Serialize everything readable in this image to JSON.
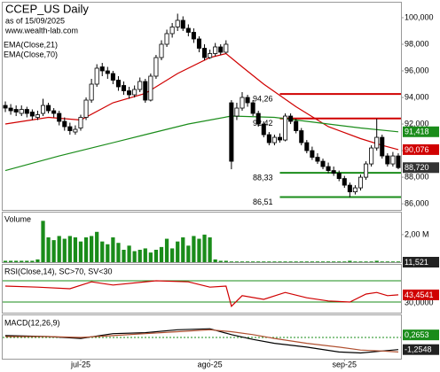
{
  "chart_data": {
    "type": "candlestick",
    "title": "CCEP_US Daily",
    "subtitle": "as of 15/09/2025",
    "source": "www.wealth-lab.com",
    "xticks": [
      {
        "value": 14,
        "label": "jul-25"
      },
      {
        "value": 38,
        "label": "ago-25"
      },
      {
        "value": 63,
        "label": "sep-25"
      }
    ],
    "ylim": [
      85.54,
      101.13
    ],
    "yticks": [
      {
        "value": 100,
        "label": "100,000"
      },
      {
        "value": 98,
        "label": "98,000"
      },
      {
        "value": 96,
        "label": "96,000"
      },
      {
        "value": 94,
        "label": "94,000"
      },
      {
        "value": 92,
        "label": "92,000"
      },
      {
        "value": 90,
        "label": "90,000"
      },
      {
        "value": 88,
        "label": "88,000"
      },
      {
        "value": 86,
        "label": "86,000"
      }
    ],
    "open": [
      93.4,
      93.2,
      93.1,
      92.8,
      93.1,
      92.9,
      92.5,
      92.8,
      93.4,
      93.0,
      92.8,
      92.2,
      91.8,
      91.4,
      91.7,
      92.5,
      93.8,
      95.0,
      96.3,
      96.0,
      95.8,
      95.3,
      94.9,
      94.5,
      94.2,
      94.6,
      95.2,
      93.8,
      95.6,
      97.0,
      98.0,
      98.8,
      99.3,
      99.8,
      99.2,
      98.9,
      98.4,
      97.7,
      97.0,
      97.3,
      97.8,
      97.4,
      93.6,
      92.6,
      93.2,
      94.0,
      93.6,
      92.8,
      92.0,
      91.2,
      90.6,
      91.0,
      90.8,
      92.6,
      92.2,
      91.5,
      90.6,
      90.0,
      89.5,
      89.2,
      88.8,
      88.5,
      88.3,
      87.9,
      87.4,
      86.9,
      87.2,
      88.0,
      89.0,
      90.2,
      91.0,
      89.6,
      89.0,
      89.6
    ],
    "high": [
      93.7,
      93.5,
      93.4,
      93.4,
      93.3,
      93.1,
      93.0,
      93.9,
      93.6,
      93.2,
      93.0,
      92.5,
      92.1,
      91.9,
      92.7,
      94.0,
      95.4,
      96.5,
      96.6,
      96.3,
      96.0,
      95.6,
      95.2,
      94.8,
      94.9,
      95.5,
      95.4,
      95.8,
      97.2,
      98.3,
      99.1,
      99.6,
      100.3,
      100.1,
      99.5,
      99.2,
      98.6,
      98.0,
      97.6,
      98.1,
      98.0,
      98.3,
      93.8,
      93.6,
      94.4,
      94.2,
      93.8,
      93.0,
      92.2,
      91.4,
      91.2,
      91.3,
      92.8,
      92.8,
      92.4,
      91.7,
      90.8,
      90.3,
      89.8,
      89.4,
      89.1,
      88.8,
      88.5,
      88.1,
      87.6,
      87.4,
      88.2,
      89.2,
      90.4,
      92.4,
      91.2,
      89.8,
      89.9,
      89.8
    ],
    "low": [
      92.9,
      92.7,
      92.6,
      92.6,
      92.5,
      92.3,
      92.3,
      92.6,
      92.8,
      92.5,
      91.9,
      91.5,
      91.2,
      91.2,
      91.5,
      92.3,
      93.6,
      94.8,
      95.6,
      95.4,
      95.0,
      94.5,
      94.2,
      93.9,
      94.0,
      94.4,
      93.6,
      93.7,
      95.4,
      96.8,
      97.8,
      98.5,
      99.0,
      99.0,
      98.6,
      98.1,
      97.4,
      96.8,
      96.9,
      97.1,
      97.2,
      97.3,
      88.6,
      92.3,
      93.0,
      93.3,
      92.6,
      91.8,
      91.0,
      90.4,
      90.4,
      90.6,
      90.7,
      92.0,
      91.3,
      90.4,
      89.8,
      89.3,
      89.0,
      88.6,
      88.3,
      88.1,
      87.7,
      87.2,
      86.5,
      86.7,
      87.0,
      87.8,
      88.8,
      90.0,
      89.4,
      88.8,
      88.8,
      88.6
    ],
    "close": [
      93.2,
      93.0,
      92.9,
      93.1,
      92.8,
      92.6,
      92.7,
      93.4,
      93.0,
      92.8,
      92.2,
      91.8,
      91.5,
      91.6,
      92.5,
      93.8,
      95.0,
      96.2,
      96.0,
      95.8,
      95.3,
      94.8,
      94.5,
      94.2,
      94.6,
      95.2,
      93.8,
      95.6,
      97.0,
      98.0,
      98.8,
      99.3,
      99.8,
      99.2,
      98.9,
      98.4,
      97.7,
      97.0,
      97.3,
      97.8,
      97.4,
      98.0,
      89.2,
      93.2,
      94.0,
      93.6,
      92.8,
      92.0,
      91.2,
      90.6,
      91.0,
      90.8,
      92.6,
      92.2,
      91.5,
      90.6,
      90.0,
      89.5,
      89.2,
      88.8,
      88.5,
      88.3,
      87.9,
      87.4,
      86.9,
      87.2,
      88.0,
      89.0,
      90.2,
      91.0,
      89.6,
      89.0,
      89.6,
      88.72
    ],
    "close_last_label": "88,720",
    "series": [
      {
        "name": "EMA(Close,21)",
        "color": "#d00000",
        "x": [
          0,
          8,
          14,
          20,
          26,
          32,
          38,
          41,
          44,
          48,
          54,
          60,
          66,
          70,
          73
        ],
        "values": [
          92.0,
          92.5,
          92.3,
          93.6,
          94.3,
          95.8,
          97.0,
          97.3,
          96.3,
          95.0,
          93.3,
          91.8,
          90.9,
          90.4,
          90.076
        ],
        "last_label": "90,076"
      },
      {
        "name": "EMA(Close,70)",
        "color": "#1a8c1a",
        "x": [
          0,
          10,
          18,
          26,
          34,
          42,
          50,
          58,
          66,
          73
        ],
        "values": [
          88.5,
          89.6,
          90.4,
          91.2,
          92.0,
          92.6,
          92.5,
          92.1,
          91.7,
          91.418
        ],
        "last_label": "91,418"
      }
    ],
    "levels": [
      {
        "value": 94.26,
        "label": "94,26",
        "color": "#d00000",
        "x_start": 51
      },
      {
        "value": 92.42,
        "label": "92,42",
        "color": "#d00000",
        "x_start": 51
      },
      {
        "value": 88.33,
        "label": "88,33",
        "color": "#1a8c1a",
        "x_start": 51
      },
      {
        "value": 86.51,
        "label": "86,51",
        "color": "#1a8c1a",
        "x_start": 51
      }
    ],
    "volume": {
      "title": "Volume",
      "color": "#1a8c1a",
      "ylim": [
        0,
        3.6
      ],
      "yticks": [
        {
          "value": 2,
          "label": "2,00 M"
        }
      ],
      "last_label": "11,521",
      "values": [
        0.1,
        0.1,
        0.1,
        0.1,
        0.1,
        0.1,
        0.2,
        3.0,
        1.8,
        1.6,
        1.9,
        1.7,
        1.9,
        1.8,
        1.5,
        1.8,
        1.9,
        2.2,
        1.5,
        1.3,
        1.8,
        1.4,
        0.9,
        1.2,
        0.8,
        0.9,
        1.0,
        0.7,
        0.9,
        1.1,
        1.7,
        1.0,
        1.5,
        1.8,
        1.2,
        1.9,
        1.7,
        2.0,
        1.8,
        0.2,
        0.1,
        0.1,
        0.05,
        0.05,
        0.05,
        0.05,
        0.05,
        0.05,
        0.05,
        0.05,
        0.05,
        0.05,
        0.05,
        0.05,
        0.05,
        0.05,
        0.05,
        0.05,
        0.05,
        0.05,
        0.05,
        0.05,
        0.05,
        0.05,
        0.1,
        0.05,
        0.05,
        0.05,
        0.05,
        0.1,
        0.05,
        0.05,
        0.05,
        0.05
      ]
    },
    "rsi": {
      "title": "RSI(Close,14), SC>70, SV<30",
      "color": "#d00000",
      "ylim": [
        10,
        100
      ],
      "levels": [
        70,
        30
      ],
      "yticks": [
        {
          "value": 30,
          "label": "30,0000"
        }
      ],
      "x": [
        0,
        6,
        12,
        16,
        20,
        28,
        34,
        38,
        41,
        42,
        44,
        48,
        52,
        56,
        60,
        64,
        67,
        69,
        71,
        73
      ],
      "values": [
        60,
        58,
        55,
        68,
        62,
        70,
        68,
        58,
        60,
        22,
        42,
        35,
        48,
        38,
        32,
        30,
        45,
        48,
        42,
        43.4541
      ],
      "last_label": "43,4541"
    },
    "macd": {
      "title": "MACD(12,26,9)",
      "ylim": [
        -2.2,
        2.3
      ],
      "series": [
        {
          "color": "#000000",
          "x": [
            0,
            8,
            14,
            20,
            26,
            32,
            38,
            42,
            46,
            50,
            56,
            62,
            66,
            70,
            73
          ],
          "values": [
            0.2,
            0.1,
            -0.1,
            0.4,
            0.5,
            0.8,
            0.9,
            0.3,
            -0.2,
            -0.6,
            -1.0,
            -1.5,
            -1.6,
            -1.4,
            -1.2548
          ],
          "last_label": "-1,2548"
        },
        {
          "color": "#b05030",
          "x": [
            0,
            8,
            14,
            20,
            26,
            32,
            38,
            42,
            46,
            50,
            56,
            62,
            66,
            70,
            73
          ],
          "values": [
            0.1,
            0.1,
            0.0,
            0.2,
            0.4,
            0.6,
            0.8,
            0.6,
            0.3,
            -0.1,
            -0.6,
            -1.0,
            -1.3,
            -1.4,
            -1.5
          ]
        }
      ],
      "hist_last": {
        "value": 0.2653,
        "label": "0,2653"
      }
    }
  }
}
